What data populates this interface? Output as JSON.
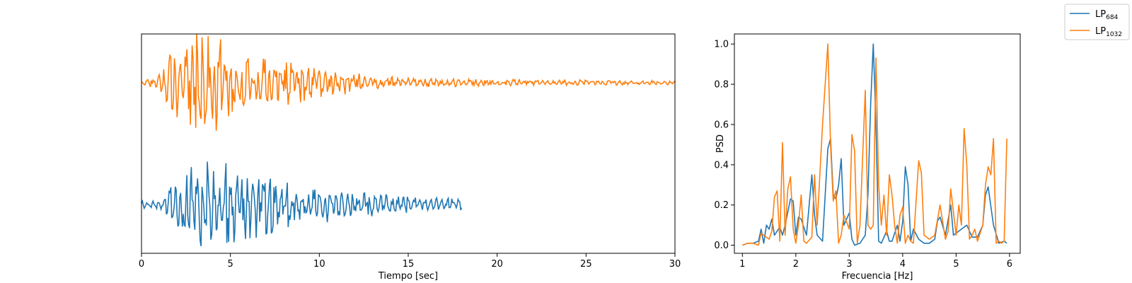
{
  "colors": {
    "lp684": "#1f77b4",
    "lp1032": "#ff7f0e"
  },
  "legend": {
    "placement": "top-right",
    "items": [
      {
        "base": "LP",
        "sub": "684",
        "color": "#1f77b4"
      },
      {
        "base": "LP",
        "sub": "1032",
        "color": "#ff7f0e"
      }
    ]
  },
  "chart_data": [
    {
      "type": "line",
      "xlabel": "Tiempo [sec]",
      "ylabel": "",
      "xlim": [
        0,
        30
      ],
      "xticks": [
        0,
        5,
        10,
        15,
        20,
        25,
        30
      ],
      "yticks_shown": false,
      "grid": false,
      "series": [
        {
          "name": "LP684",
          "duration_sec": 18,
          "offset": -1.0,
          "envelope": [
            [
              0,
              0.06
            ],
            [
              1,
              0.06
            ],
            [
              1.5,
              0.2
            ],
            [
              2.2,
              0.5
            ],
            [
              3,
              0.6
            ],
            [
              4.5,
              0.6
            ],
            [
              6,
              0.5
            ],
            [
              7,
              0.5
            ],
            [
              9,
              0.3
            ],
            [
              12,
              0.2
            ],
            [
              15,
              0.12
            ],
            [
              18,
              0.08
            ]
          ]
        },
        {
          "name": "LP1032",
          "duration_sec": 30,
          "offset": 1.0,
          "envelope": [
            [
              0,
              0.04
            ],
            [
              0.8,
              0.08
            ],
            [
              1.3,
              0.35
            ],
            [
              2,
              0.6
            ],
            [
              3,
              0.7
            ],
            [
              4,
              0.7
            ],
            [
              5,
              0.5
            ],
            [
              7,
              0.4
            ],
            [
              9,
              0.3
            ],
            [
              11,
              0.18
            ],
            [
              13,
              0.1
            ],
            [
              16,
              0.06
            ],
            [
              20,
              0.05
            ],
            [
              25,
              0.04
            ],
            [
              30,
              0.03
            ]
          ]
        }
      ]
    },
    {
      "type": "line",
      "xlabel": "Frecuencia [Hz]",
      "ylabel": "PSD",
      "xlim": [
        0.85,
        6.2
      ],
      "ylim": [
        -0.04,
        1.05
      ],
      "xticks": [
        1,
        2,
        3,
        4,
        5,
        6
      ],
      "yticks": [
        0.0,
        0.2,
        0.4,
        0.6,
        0.8,
        1.0
      ],
      "grid": false,
      "series": [
        {
          "name": "LP684",
          "x": [
            1.0,
            1.1,
            1.2,
            1.3,
            1.35,
            1.4,
            1.45,
            1.5,
            1.55,
            1.6,
            1.7,
            1.75,
            1.8,
            1.9,
            1.95,
            2.0,
            2.05,
            2.1,
            2.2,
            2.25,
            2.3,
            2.35,
            2.4,
            2.5,
            2.6,
            2.65,
            2.7,
            2.75,
            2.8,
            2.85,
            2.9,
            3.0,
            3.05,
            3.1,
            3.2,
            3.3,
            3.35,
            3.4,
            3.45,
            3.5,
            3.55,
            3.6,
            3.7,
            3.75,
            3.8,
            3.9,
            3.95,
            4.0,
            4.05,
            4.1,
            4.15,
            4.2,
            4.3,
            4.4,
            4.5,
            4.6,
            4.65,
            4.7,
            4.8,
            4.9,
            4.95,
            5.0,
            5.1,
            5.2,
            5.3,
            5.4,
            5.5,
            5.55,
            5.6,
            5.7,
            5.8,
            5.9,
            5.95
          ],
          "y": [
            0.0,
            0.01,
            0.01,
            0.02,
            0.08,
            0.01,
            0.1,
            0.08,
            0.13,
            0.05,
            0.09,
            0.05,
            0.1,
            0.23,
            0.22,
            0.05,
            0.14,
            0.13,
            0.05,
            0.2,
            0.35,
            0.15,
            0.05,
            0.02,
            0.48,
            0.53,
            0.25,
            0.23,
            0.3,
            0.43,
            0.1,
            0.16,
            0.03,
            0.0,
            0.01,
            0.05,
            0.25,
            0.7,
            1.0,
            0.6,
            0.02,
            0.01,
            0.07,
            0.02,
            0.02,
            0.1,
            0.02,
            0.12,
            0.39,
            0.3,
            0.02,
            0.08,
            0.03,
            0.01,
            0.01,
            0.03,
            0.12,
            0.14,
            0.05,
            0.2,
            0.05,
            0.06,
            0.08,
            0.1,
            0.04,
            0.04,
            0.1,
            0.25,
            0.29,
            0.1,
            0.01,
            0.02,
            0.01
          ]
        },
        {
          "name": "LP1032",
          "x": [
            1.0,
            1.1,
            1.2,
            1.3,
            1.35,
            1.4,
            1.5,
            1.55,
            1.6,
            1.65,
            1.7,
            1.75,
            1.8,
            1.85,
            1.9,
            1.95,
            2.0,
            2.05,
            2.1,
            2.15,
            2.2,
            2.3,
            2.35,
            2.4,
            2.5,
            2.6,
            2.65,
            2.7,
            2.75,
            2.8,
            2.85,
            2.9,
            3.0,
            3.05,
            3.1,
            3.15,
            3.2,
            3.3,
            3.35,
            3.4,
            3.45,
            3.5,
            3.55,
            3.6,
            3.65,
            3.7,
            3.75,
            3.8,
            3.85,
            3.9,
            3.95,
            4.0,
            4.05,
            4.1,
            4.15,
            4.2,
            4.3,
            4.35,
            4.4,
            4.5,
            4.55,
            4.6,
            4.7,
            4.8,
            4.85,
            4.9,
            5.0,
            5.05,
            5.1,
            5.15,
            5.2,
            5.25,
            5.3,
            5.35,
            5.4,
            5.5,
            5.55,
            5.6,
            5.65,
            5.7,
            5.75,
            5.8,
            5.85,
            5.9,
            5.95
          ],
          "y": [
            0.0,
            0.01,
            0.01,
            0.0,
            0.06,
            0.05,
            0.03,
            0.07,
            0.24,
            0.27,
            0.02,
            0.51,
            0.05,
            0.28,
            0.34,
            0.08,
            0.01,
            0.1,
            0.25,
            0.02,
            0.01,
            0.04,
            0.35,
            0.1,
            0.6,
            1.0,
            0.5,
            0.22,
            0.27,
            0.01,
            0.05,
            0.15,
            0.08,
            0.55,
            0.47,
            0.01,
            0.1,
            0.77,
            0.1,
            0.08,
            0.1,
            0.93,
            0.3,
            0.1,
            0.25,
            0.05,
            0.35,
            0.25,
            0.1,
            0.01,
            0.15,
            0.19,
            0.01,
            0.05,
            0.02,
            0.01,
            0.42,
            0.36,
            0.05,
            0.03,
            0.04,
            0.05,
            0.2,
            0.03,
            0.07,
            0.28,
            0.05,
            0.2,
            0.1,
            0.58,
            0.4,
            0.03,
            0.05,
            0.08,
            0.02,
            0.1,
            0.3,
            0.39,
            0.35,
            0.53,
            0.01,
            0.02,
            0.01,
            0.02,
            0.53
          ]
        }
      ]
    }
  ]
}
